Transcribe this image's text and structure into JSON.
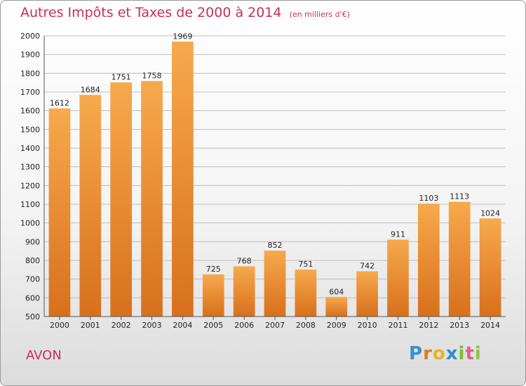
{
  "title": "Autres Impôts et Taxes de 2000 à 2014",
  "unit_note": "(en milliers d'€)",
  "commune": "AVON",
  "logo": {
    "letters": [
      "P",
      "r",
      "o",
      "x",
      "i",
      "t",
      "i"
    ],
    "colors": [
      "#3a8fd0",
      "#e07b1c",
      "#e8b51d",
      "#2e8ad0",
      "#7bbf2a",
      "#e25d8c",
      "#8bc53f"
    ]
  },
  "colors": {
    "accent": "#c72f57",
    "bar_top": "#f7a94d",
    "bar_bottom": "#d8701c"
  },
  "chart_data": {
    "type": "bar",
    "title": "Autres Impôts et Taxes de 2000 à 2014",
    "xlabel": "",
    "ylabel": "",
    "categories": [
      "2000",
      "2001",
      "2002",
      "2003",
      "2004",
      "2005",
      "2006",
      "2007",
      "2008",
      "2009",
      "2010",
      "2011",
      "2012",
      "2013",
      "2014"
    ],
    "values": [
      1612,
      1684,
      1751,
      1758,
      1969,
      725,
      768,
      852,
      751,
      604,
      742,
      911,
      1103,
      1113,
      1024
    ],
    "ylim": [
      500,
      2000
    ],
    "yticks": [
      500,
      600,
      700,
      800,
      900,
      1000,
      1100,
      1200,
      1300,
      1400,
      1500,
      1600,
      1700,
      1800,
      1900,
      2000
    ],
    "grid": true,
    "legend": "none"
  }
}
